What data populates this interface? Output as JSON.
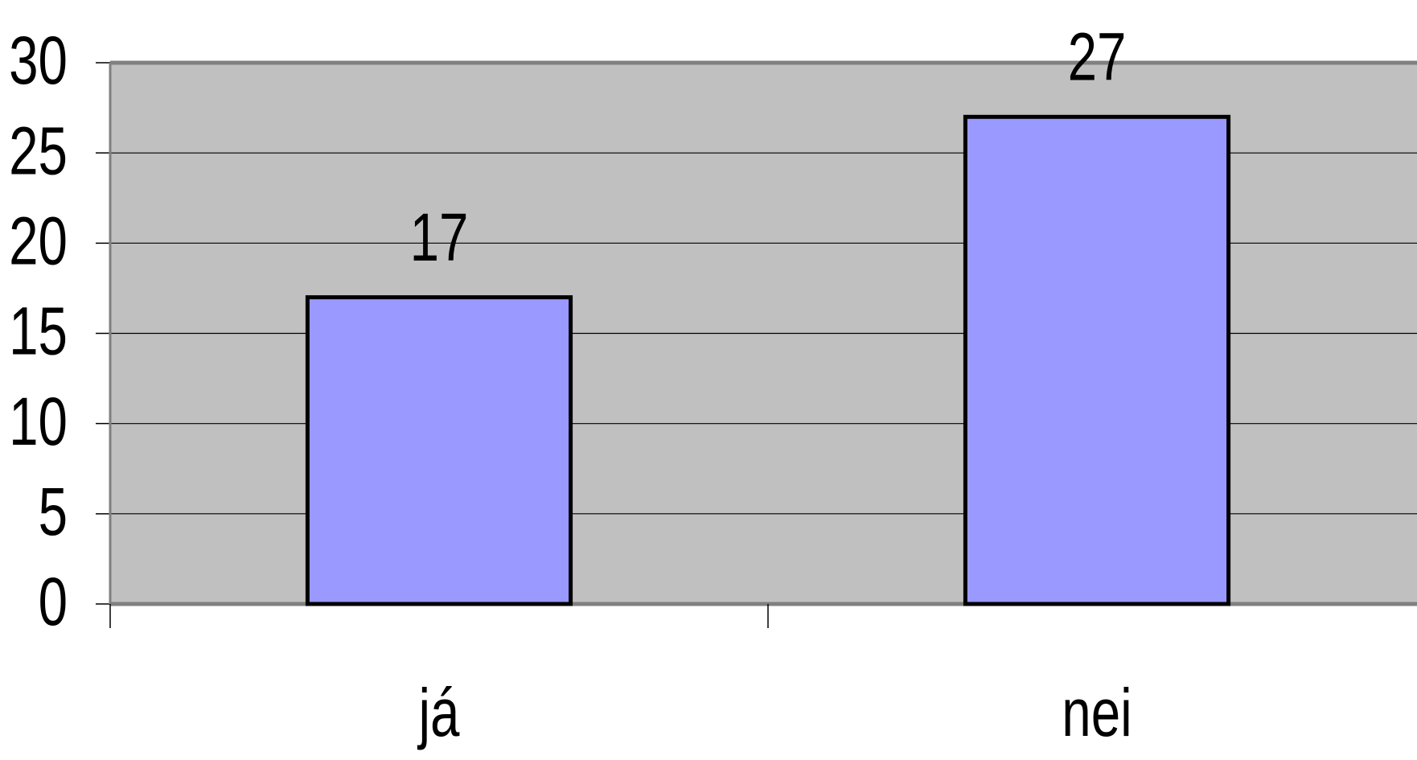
{
  "chart_data": {
    "type": "bar",
    "categories": [
      "já",
      "nei"
    ],
    "values": [
      17,
      27
    ],
    "color": "#9999ff",
    "ylim": [
      0,
      30
    ],
    "yticks": [
      0,
      5,
      10,
      15,
      20,
      25,
      30
    ],
    "grid": true
  }
}
